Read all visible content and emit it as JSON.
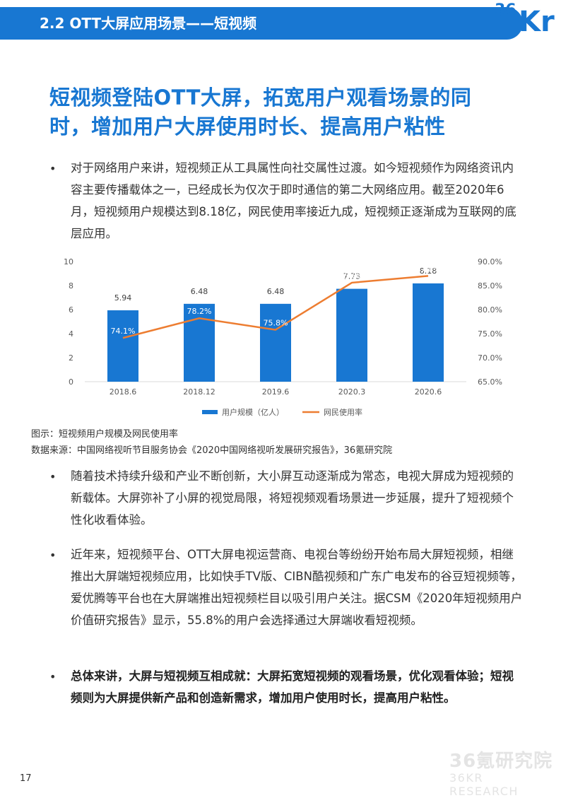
{
  "header": {
    "title": "2.2 OTT大屏应用场景——短视频"
  },
  "logo": {
    "top": "36",
    "kr": "Kr"
  },
  "headline": {
    "line1": "短视频登陆OTT大屏，拓宽用户观看场景的同",
    "line2": "时，增加用户大屏使用时长、提高用户粘性"
  },
  "bullets": [
    {
      "symbol": "•",
      "text": "对于网络用户来讲，短视频正从工具属性向社交属性过渡。如今短视频作为网络资讯内容主要传播载体之一，已经成长为仅次于即时通信的第二大网络应用。截至2020年6月，短视频用户规模达到8.18亿，网民使用率接近九成，短视频正逐渐成为互联网的底层应用。"
    },
    {
      "symbol": "•",
      "text": "随着技术持续升级和产业不断创新，大小屏互动逐渐成为常态，电视大屏成为短视频的新载体。大屏弥补了小屏的视觉局限，将短视频观看场景进一步延展，提升了短视频个性化收看体验。"
    },
    {
      "symbol": "•",
      "text": "近年来，短视频平台、OTT大屏电视运营商、电视台等纷纷开始布局大屏短视频，相继推出大屏端短视频应用，比如快手TV版、CIBN酷视频和广东广电发布的谷豆短视频等，爱优腾等平台也在大屏端推出短视频栏目以吸引用户关注。据CSM《2020年短视频用户价值研究报告》显示，55.8%的用户会选择通过大屏端收看短视频。"
    },
    {
      "symbol": "•",
      "text": "总体来讲，大屏与短视频互相成就：大屏拓宽短视频的观看场景，优化观看体验；短视频则为大屏提供新产品和创造新需求，增加用户使用时长，提高用户粘性。"
    }
  ],
  "chart_data": {
    "type": "bar",
    "categories": [
      "2018.6",
      "2018.12",
      "2019.6",
      "2020.3",
      "2020.6"
    ],
    "series": [
      {
        "name": "用户规模（亿人）",
        "type": "bar",
        "axis": "left",
        "values": [
          5.94,
          6.48,
          6.48,
          7.73,
          8.18
        ],
        "labels": [
          "5.94",
          "6.48",
          "6.48",
          "7.73",
          "8.18"
        ],
        "color": "#1877d2"
      },
      {
        "name": "网民使用率",
        "type": "line",
        "axis": "right",
        "values": [
          74.1,
          78.2,
          75.8,
          85.6,
          87.0
        ],
        "labels": [
          "74.1%",
          "78.2%",
          "75.8%",
          "85.6%",
          "87.0%"
        ],
        "color": "#ed7d31"
      }
    ],
    "left_axis": {
      "ylim": [
        0,
        10
      ],
      "ticks": [
        "0",
        "2",
        "4",
        "6",
        "8",
        "10"
      ]
    },
    "right_axis": {
      "ylim": [
        65,
        90
      ],
      "ticks": [
        "65.0%",
        "70.0%",
        "75.0%",
        "80.0%",
        "85.0%",
        "90.0%"
      ]
    },
    "legend": "bottom"
  },
  "caption": {
    "figure": "图示：短视频用户规模及网民使用率",
    "source": "数据来源：中国网络视听节目服务协会《2020中国网络视听发展研究报告》，36氪研究院"
  },
  "watermark": {
    "main": "36氪研究院",
    "sub": "36KR RESEARCH"
  },
  "page_number": "17"
}
